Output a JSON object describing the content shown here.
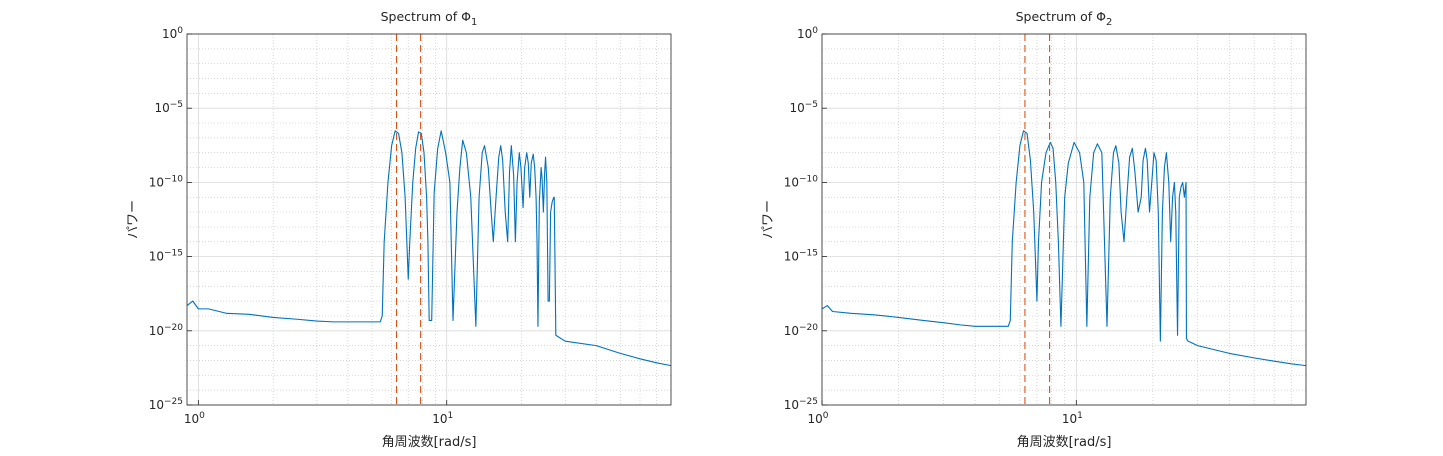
{
  "colors": {
    "signal": "#0072BD",
    "marker": "#D95319",
    "grid_major": "#d9d9d9",
    "grid_minor": "#c8c8c8",
    "axes": "#262626"
  },
  "chart_data": [
    {
      "type": "line",
      "title": "Spectrum of Φ",
      "title_subscript": "1",
      "xlabel": "角周波数[rad/s]",
      "ylabel": "パワー",
      "xscale": "log",
      "yscale": "log",
      "xlim": [
        0.9,
        80
      ],
      "ylim": [
        1e-25,
        1
      ],
      "grid": "major and minor",
      "xticks": [
        {
          "value": 1,
          "label": "10",
          "exp": "0"
        },
        {
          "value": 10,
          "label": "10",
          "exp": "1"
        }
      ],
      "yticks": [
        {
          "value": 1,
          "label": "10",
          "exp": "0"
        },
        {
          "value": 1e-05,
          "label": "10",
          "exp": "−5"
        },
        {
          "value": 1e-10,
          "label": "10",
          "exp": "−10"
        },
        {
          "value": 1e-15,
          "label": "10",
          "exp": "−15"
        },
        {
          "value": 1e-20,
          "label": "10",
          "exp": "−20"
        },
        {
          "value": 1e-25,
          "label": "10",
          "exp": "−25"
        }
      ],
      "reference_lines_x": [
        6.28,
        7.85
      ],
      "series": [
        {
          "x": [
            0.9,
            0.95,
            1.0,
            1.1,
            1.3,
            1.6,
            2.0,
            2.5,
            3.0,
            3.5,
            4.0,
            4.5,
            5.0,
            5.4,
            5.5,
            5.6,
            5.8,
            6.0,
            6.2,
            6.4,
            6.6,
            6.8,
            7.0,
            7.1,
            7.3,
            7.5,
            7.7,
            7.9,
            8.1,
            8.3,
            8.4,
            8.5,
            8.7,
            8.9,
            9.2,
            9.5,
            9.9,
            10.3,
            10.6,
            11.0,
            11.3,
            11.6,
            12.0,
            12.5,
            13.1,
            13.5,
            13.9,
            14.2,
            14.7,
            15.1,
            15.4,
            15.8,
            16.2,
            16.5,
            16.8,
            17.2,
            17.6,
            17.9,
            18.2,
            18.6,
            18.9,
            19.2,
            19.6,
            19.9,
            20.3,
            20.6,
            21.0,
            21.3,
            21.6,
            21.9,
            22.3,
            22.6,
            22.9,
            23.1,
            23.3,
            23.6,
            24.0,
            24.2,
            24.5,
            24.8,
            25.0,
            25.3,
            25.6,
            25.9,
            26.2,
            26.6,
            27.0,
            27.1,
            27.5,
            30,
            40,
            50,
            60,
            70,
            80
          ],
          "y": [
            5e-19,
            1e-18,
            3e-19,
            3e-19,
            1.5e-19,
            1.3e-19,
            8e-20,
            6e-20,
            4.5e-20,
            4e-20,
            4e-20,
            4e-20,
            4e-20,
            4e-20,
            1e-19,
            1e-14,
            1e-10,
            3e-08,
            3e-07,
            2e-07,
            1e-08,
            1e-11,
            3e-17,
            1e-14,
            1e-10,
            2e-08,
            2.5e-07,
            2e-07,
            1e-08,
            1e-11,
            1e-14,
            5e-20,
            5e-20,
            2e-11,
            2e-08,
            3e-07,
            1e-08,
            1e-10,
            5e-20,
            1e-12,
            1e-09,
            7e-08,
            1e-08,
            1e-11,
            2e-20,
            1e-11,
            1e-08,
            3e-08,
            1e-09,
            1e-12,
            1e-14,
            1e-11,
            5e-09,
            3e-08,
            3e-09,
            1e-12,
            1e-14,
            5e-10,
            3e-08,
            3e-10,
            1e-14,
            1e-10,
            1e-08,
            1e-09,
            2e-12,
            1e-09,
            1e-08,
            2e-09,
            1e-11,
            2e-09,
            8e-09,
            1e-09,
            1e-11,
            1e-14,
            2e-20,
            5e-12,
            1e-09,
            2e-10,
            1e-12,
            5e-10,
            5e-09,
            1e-10,
            1e-18,
            1e-18,
            1e-12,
            5e-12,
            1e-11,
            1e-11,
            5e-21,
            2e-21,
            1e-21,
            3e-22,
            1.3e-22,
            7e-23,
            4.5e-23
          ]
        }
      ]
    },
    {
      "type": "line",
      "title": "Spectrum of Φ",
      "title_subscript": "2",
      "xlabel": "角周波数[rad/s]",
      "ylabel": "パワー",
      "xscale": "log",
      "yscale": "log",
      "xlim": [
        1.0,
        80
      ],
      "ylim": [
        1e-25,
        1
      ],
      "grid": "major and minor",
      "xticks": [
        {
          "value": 1,
          "label": "10",
          "exp": "0"
        },
        {
          "value": 10,
          "label": "10",
          "exp": "1"
        }
      ],
      "yticks": [
        {
          "value": 1,
          "label": "10",
          "exp": "0"
        },
        {
          "value": 1e-05,
          "label": "10",
          "exp": "−5"
        },
        {
          "value": 1e-10,
          "label": "10",
          "exp": "−10"
        },
        {
          "value": 1e-15,
          "label": "10",
          "exp": "−15"
        },
        {
          "value": 1e-20,
          "label": "10",
          "exp": "−20"
        },
        {
          "value": 1e-25,
          "label": "10",
          "exp": "−25"
        }
      ],
      "reference_lines_x": [
        6.28,
        7.85
      ],
      "series": [
        {
          "x": [
            1.0,
            1.05,
            1.1,
            1.3,
            1.6,
            2.0,
            2.5,
            3.0,
            3.5,
            4.0,
            4.5,
            5.0,
            5.4,
            5.5,
            5.6,
            5.8,
            6.0,
            6.2,
            6.4,
            6.6,
            6.8,
            7.0,
            7.1,
            7.3,
            7.6,
            7.9,
            8.1,
            8.3,
            8.5,
            8.7,
            9.0,
            9.3,
            9.8,
            10.3,
            10.7,
            11.0,
            11.3,
            11.7,
            12.1,
            12.6,
            13.2,
            13.6,
            14.0,
            14.3,
            14.7,
            15.0,
            15.4,
            15.8,
            16.2,
            16.6,
            17.0,
            17.5,
            18.0,
            18.3,
            18.7,
            19.0,
            19.4,
            19.8,
            20.2,
            20.6,
            21.0,
            21.4,
            21.8,
            22.2,
            22.6,
            23.1,
            23.5,
            23.9,
            24.3,
            24.6,
            25.0,
            25.4,
            25.8,
            26.2,
            26.6,
            27.0,
            27.1,
            27.5,
            30,
            40,
            50,
            60,
            70,
            80
          ],
          "y": [
            3e-19,
            5e-19,
            2e-19,
            1.5e-19,
            1.2e-19,
            8e-20,
            5e-20,
            3.5e-20,
            2.5e-20,
            2e-20,
            2e-20,
            2e-20,
            2e-20,
            5e-20,
            1e-14,
            1e-10,
            3e-08,
            3e-07,
            2e-07,
            3e-09,
            1e-12,
            1e-18,
            1e-14,
            1e-10,
            1e-08,
            5e-08,
            2e-08,
            1e-10,
            1e-14,
            2e-20,
            1e-11,
            2e-09,
            5e-08,
            1e-08,
            1e-10,
            2e-20,
            1e-11,
            1e-08,
            4e-08,
            1e-08,
            2e-20,
            1e-11,
            1e-08,
            3e-08,
            2e-09,
            1e-12,
            1e-14,
            1e-11,
            5e-09,
            2e-08,
            5e-10,
            1e-12,
            1e-11,
            3e-09,
            2e-08,
            3e-09,
            1e-12,
            1e-10,
            1e-08,
            3e-09,
            1e-12,
            2e-21,
            1e-12,
            1e-09,
            1e-08,
            1e-10,
            1e-14,
            1e-11,
            1e-10,
            1e-12,
            5e-21,
            1e-11,
            5e-11,
            1e-10,
            1e-11,
            1e-10,
            3e-21,
            2e-21,
            1e-21,
            3e-22,
            1.5e-22,
            9e-23,
            6e-23,
            4.5e-23
          ]
        }
      ]
    }
  ]
}
